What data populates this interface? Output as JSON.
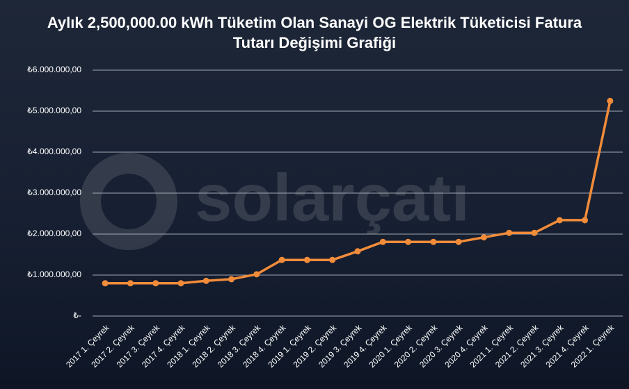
{
  "watermark": "solarçatı",
  "chart_data": {
    "type": "line",
    "title": "Aylık 2,500,000.00 kWh Tüketim Olan Sanayi OG Elektrik Tüketicisi Fatura Tutarı Değişimi Grafiği",
    "categories": [
      "2017 1. Çeyrek",
      "2017 2. Çeyrek",
      "2017 3. Çeyrek",
      "2017 4. Çeyrek",
      "2018 1. Çeyrek",
      "2018 2. Çeyrek",
      "2018 3. Çeyrek",
      "2018 4. Çeyrek",
      "2019 1. Çeyrek",
      "2019 2. Çeyrek",
      "2019 3. Çeyrek",
      "2019 4. Çeyrek",
      "2020 1. Çeyrek",
      "2020 2. Çeyrek",
      "2020 3. Çeyrek",
      "2020 4. Çeyrek",
      "2021 1. Çeyrek",
      "2021 2. Çeyrek",
      "2021 3. Çeyrek",
      "2021 4. Çeyrek",
      "2022 1. Çeyrek"
    ],
    "values": [
      800000,
      800000,
      800000,
      800000,
      860000,
      900000,
      1020000,
      1370000,
      1370000,
      1370000,
      1580000,
      1810000,
      1810000,
      1810000,
      1810000,
      1920000,
      2030000,
      2030000,
      2340000,
      2340000,
      5250000
    ],
    "color": "#f28c3a",
    "ylim": [
      0,
      6000000
    ],
    "yticks": [
      {
        "value": 0,
        "label": "₺-"
      },
      {
        "value": 1000000,
        "label": "₺1.000.000,00"
      },
      {
        "value": 2000000,
        "label": "₺2.000.000,00"
      },
      {
        "value": 3000000,
        "label": "₺3.000.000,00"
      },
      {
        "value": 4000000,
        "label": "₺4.000.000,00"
      },
      {
        "value": 5000000,
        "label": "₺5.000.000,00"
      },
      {
        "value": 6000000,
        "label": "₺6.000.000,00"
      }
    ],
    "grid": true
  }
}
